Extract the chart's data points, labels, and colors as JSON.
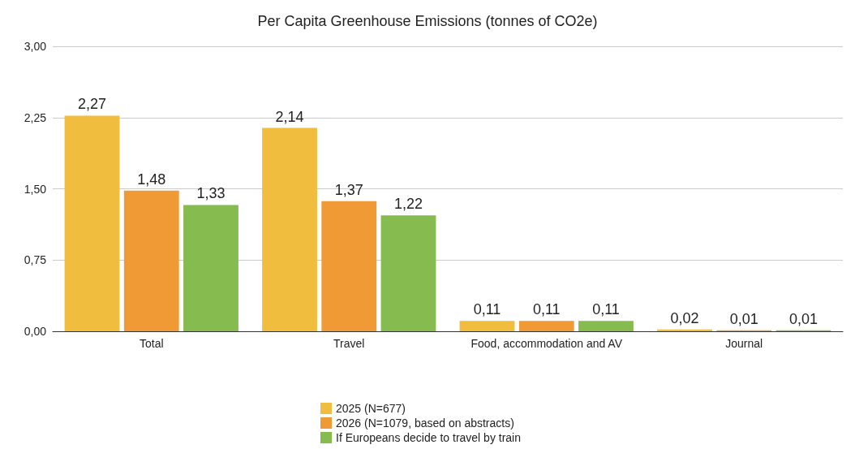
{
  "chart_data": {
    "type": "bar",
    "title": "Per Capita Greenhouse Emissions (tonnes of CO2e)",
    "categories": [
      "Total",
      "Travel",
      "Food, accommodation and AV",
      "Journal"
    ],
    "series": [
      {
        "name": "2025 (N=677)",
        "color": "#f0bd3e",
        "values": [
          2.27,
          2.14,
          0.11,
          0.02
        ],
        "value_labels": [
          "2,27",
          "2,14",
          "0,11",
          "0,02"
        ]
      },
      {
        "name": "2026 (N=1079, based on abstracts)",
        "color": "#ef9a35",
        "values": [
          1.48,
          1.37,
          0.11,
          0.01
        ],
        "value_labels": [
          "1,48",
          "1,37",
          "0,11",
          "0,01"
        ]
      },
      {
        "name": "If Europeans decide to travel by train",
        "color": "#86bb50",
        "values": [
          1.33,
          1.22,
          0.11,
          0.01
        ],
        "value_labels": [
          "1,33",
          "1,22",
          "0,11",
          "0,01"
        ]
      }
    ],
    "ylim": [
      0,
      3
    ],
    "yticks": [
      {
        "value": 0,
        "label": "0,00"
      },
      {
        "value": 0.75,
        "label": "0,75"
      },
      {
        "value": 1.5,
        "label": "1,50"
      },
      {
        "value": 2.25,
        "label": "2,25"
      },
      {
        "value": 3,
        "label": "3,00"
      }
    ],
    "grid": "y",
    "legend": "bottom"
  }
}
